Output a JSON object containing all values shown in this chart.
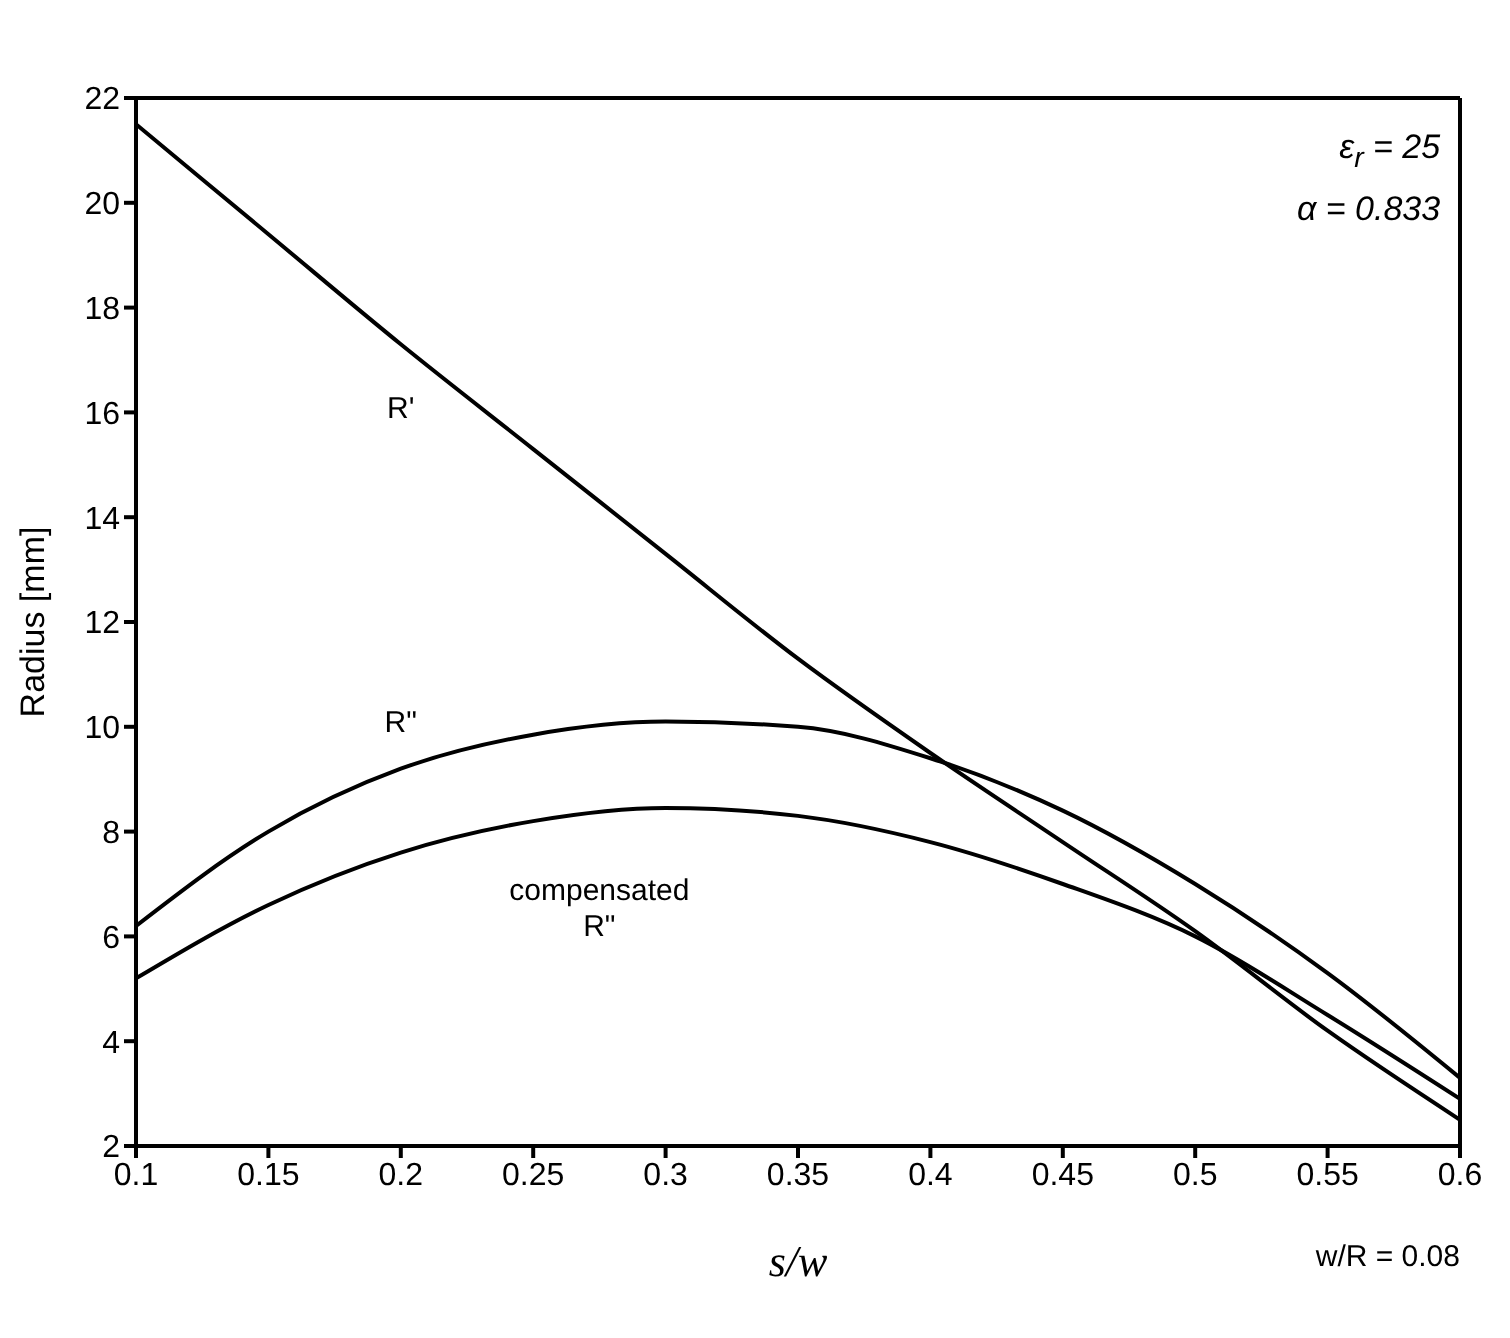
{
  "chart_data": {
    "type": "line",
    "xlabel": "s/w",
    "ylabel": "Radius [mm]",
    "xlim": [
      0.1,
      0.6
    ],
    "xticks": [
      0.1,
      0.15,
      0.2,
      0.25,
      0.3,
      0.35,
      0.4,
      0.45,
      0.5,
      0.55,
      0.6
    ],
    "ylim": [
      2,
      22
    ],
    "yticks": [
      2,
      4,
      6,
      8,
      10,
      12,
      14,
      16,
      18,
      20,
      22
    ],
    "grid": false,
    "legend": false,
    "marker": "none",
    "line_style": "solid",
    "x": [
      0.1,
      0.15,
      0.2,
      0.25,
      0.3,
      0.35,
      0.4,
      0.45,
      0.5,
      0.55,
      0.6
    ],
    "series": [
      {
        "color": "#000000",
        "values": [
          21.5,
          19.4,
          17.3,
          15.3,
          13.3,
          11.3,
          9.5,
          7.8,
          6.1,
          4.2,
          2.5
        ]
      },
      {
        "color": "#000000",
        "values": [
          6.2,
          8.0,
          9.2,
          9.85,
          10.1,
          10.0,
          9.4,
          8.4,
          7.0,
          5.3,
          3.3
        ]
      },
      {
        "color": "#000000",
        "values": [
          5.2,
          6.6,
          7.6,
          8.2,
          8.45,
          8.3,
          7.8,
          7.0,
          6.0,
          4.5,
          2.9
        ]
      }
    ],
    "annotations": [
      "R'",
      "R\"",
      "compensated R\"",
      "ε$_{r}$ = 25",
      "α = 0.833",
      "w/R = 0.08"
    ]
  }
}
